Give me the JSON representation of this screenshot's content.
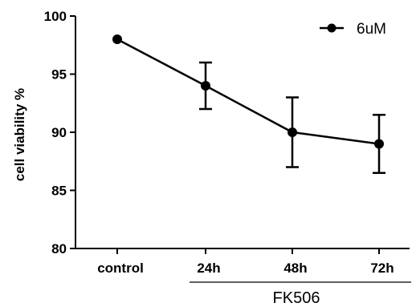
{
  "chart_data": {
    "type": "line",
    "categories": [
      "control",
      "24h",
      "48h",
      "72h"
    ],
    "series": [
      {
        "name": "6uM",
        "values": [
          98,
          94,
          90,
          89
        ],
        "error": [
          null,
          2,
          3,
          2.5
        ],
        "color": "#000000"
      }
    ],
    "ylabel": "cell viability %",
    "ylim": [
      80,
      100
    ],
    "yticks": [
      80,
      85,
      90,
      95,
      100
    ],
    "group_label": "FK506",
    "group_categories": [
      "24h",
      "48h",
      "72h"
    ],
    "legend_position": "top-right",
    "grid": false
  }
}
